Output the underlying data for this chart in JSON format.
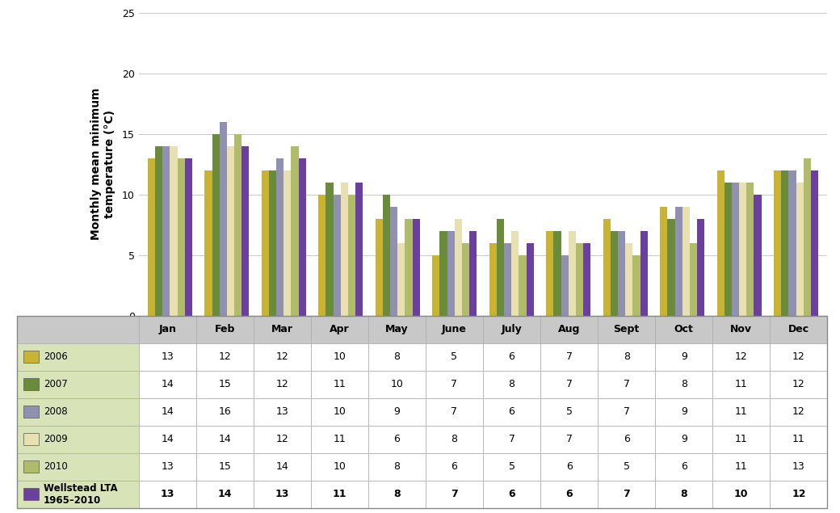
{
  "months": [
    "Jan",
    "Feb",
    "Mar",
    "Apr",
    "May",
    "June",
    "July",
    "Aug",
    "Sept",
    "Oct",
    "Nov",
    "Dec"
  ],
  "series": {
    "2006": [
      13,
      12,
      12,
      10,
      8,
      5,
      6,
      7,
      8,
      9,
      12,
      12
    ],
    "2007": [
      14,
      15,
      12,
      11,
      10,
      7,
      8,
      7,
      7,
      8,
      11,
      12
    ],
    "2008": [
      14,
      16,
      13,
      10,
      9,
      7,
      6,
      5,
      7,
      9,
      11,
      12
    ],
    "2009": [
      14,
      14,
      12,
      11,
      6,
      8,
      7,
      7,
      6,
      9,
      11,
      11
    ],
    "2010": [
      13,
      15,
      14,
      10,
      8,
      6,
      5,
      6,
      5,
      6,
      11,
      13
    ],
    "Wellstead LTA\n1965–2010": [
      13,
      14,
      13,
      11,
      8,
      7,
      6,
      6,
      7,
      8,
      10,
      12
    ]
  },
  "series_order": [
    "2006",
    "2007",
    "2008",
    "2009",
    "2010",
    "Wellstead LTA\n1965–2010"
  ],
  "colors": {
    "2006": "#c8b432",
    "2007": "#6a8c3a",
    "2008": "#9090b0",
    "2009": "#e8e0b0",
    "2010": "#b0bc6a",
    "Wellstead LTA\n1965–2010": "#6b3fa0"
  },
  "ylabel": "Monthly mean minimum\ntemperature (°C)",
  "ylim": [
    0,
    25
  ],
  "yticks": [
    0,
    5,
    10,
    15,
    20,
    25
  ],
  "table_bg": "#d8e4b8",
  "header_bg": "#c8c8c8",
  "bar_width": 0.13
}
